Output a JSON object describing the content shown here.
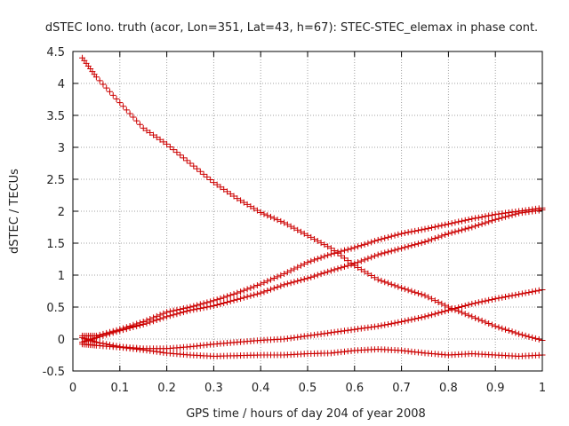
{
  "chart_data": {
    "type": "scatter",
    "title": "dSTEC Iono. truth (acor, Lon=351, Lat=43, h=67): STEC-STEC_elemax in phase cont.",
    "xlabel": "GPS time / hours of day 204 of year 2008",
    "ylabel": "dSTEC  / TECUs",
    "xlim": [
      0,
      1
    ],
    "ylim": [
      -0.5,
      4.5
    ],
    "grid": true,
    "legend": "none",
    "marker": "plus",
    "color": "#cc0000",
    "xticks": [
      "0",
      "0.1",
      "0.2",
      "0.3",
      "0.4",
      "0.5",
      "0.6",
      "0.7",
      "0.8",
      "0.9",
      "1"
    ],
    "yticks": [
      "-0.5",
      "0",
      "0.5",
      "1",
      "1.5",
      "2",
      "2.5",
      "3",
      "3.5",
      "4",
      "4.5"
    ],
    "series": [
      {
        "x": [
          0.02,
          0.05,
          0.1,
          0.15,
          0.2,
          0.25,
          0.3,
          0.35,
          0.4,
          0.45,
          0.5,
          0.55,
          0.6,
          0.65,
          0.7,
          0.75,
          0.8,
          0.85,
          0.9,
          0.95,
          1.0
        ],
        "y": [
          4.4,
          4.1,
          3.7,
          3.3,
          3.05,
          2.75,
          2.45,
          2.2,
          1.98,
          1.82,
          1.62,
          1.42,
          1.15,
          0.93,
          0.8,
          0.68,
          0.5,
          0.35,
          0.2,
          0.08,
          -0.02
        ]
      },
      {
        "x": [
          0.02,
          0.05,
          0.1,
          0.15,
          0.2,
          0.25,
          0.3,
          0.35,
          0.4,
          0.45,
          0.5,
          0.55,
          0.6,
          0.65,
          0.7,
          0.75,
          0.8,
          0.85,
          0.9,
          0.95,
          1.0
        ],
        "y": [
          0.05,
          0.05,
          0.15,
          0.27,
          0.42,
          0.5,
          0.6,
          0.72,
          0.86,
          1.02,
          1.2,
          1.33,
          1.43,
          1.55,
          1.65,
          1.72,
          1.8,
          1.88,
          1.95,
          2.0,
          2.05
        ]
      },
      {
        "x": [
          0.02,
          0.05,
          0.1,
          0.15,
          0.2,
          0.25,
          0.3,
          0.35,
          0.4,
          0.45,
          0.5,
          0.55,
          0.6,
          0.65,
          0.7,
          0.75,
          0.8,
          0.85,
          0.9,
          0.95,
          1.0
        ],
        "y": [
          -0.05,
          0.02,
          0.13,
          0.23,
          0.35,
          0.45,
          0.52,
          0.62,
          0.72,
          0.85,
          0.95,
          1.07,
          1.18,
          1.32,
          1.42,
          1.52,
          1.65,
          1.75,
          1.87,
          1.97,
          2.02
        ]
      },
      {
        "x": [
          0.02,
          0.05,
          0.1,
          0.15,
          0.2,
          0.25,
          0.3,
          0.35,
          0.4,
          0.45,
          0.5,
          0.55,
          0.6,
          0.65,
          0.7,
          0.75,
          0.8,
          0.85,
          0.9,
          0.95,
          1.0
        ],
        "y": [
          0.02,
          -0.05,
          -0.12,
          -0.15,
          -0.15,
          -0.12,
          -0.08,
          -0.05,
          -0.02,
          0.0,
          0.05,
          0.1,
          0.15,
          0.2,
          0.27,
          0.35,
          0.45,
          0.55,
          0.63,
          0.7,
          0.77
        ]
      },
      {
        "x": [
          0.02,
          0.05,
          0.1,
          0.15,
          0.2,
          0.25,
          0.3,
          0.35,
          0.4,
          0.45,
          0.5,
          0.55,
          0.6,
          0.65,
          0.7,
          0.75,
          0.8,
          0.85,
          0.9,
          0.95,
          1.0
        ],
        "y": [
          -0.08,
          -0.1,
          -0.13,
          -0.17,
          -0.22,
          -0.25,
          -0.27,
          -0.26,
          -0.25,
          -0.25,
          -0.23,
          -0.22,
          -0.18,
          -0.16,
          -0.18,
          -0.22,
          -0.25,
          -0.23,
          -0.25,
          -0.27,
          -0.25
        ]
      }
    ]
  }
}
